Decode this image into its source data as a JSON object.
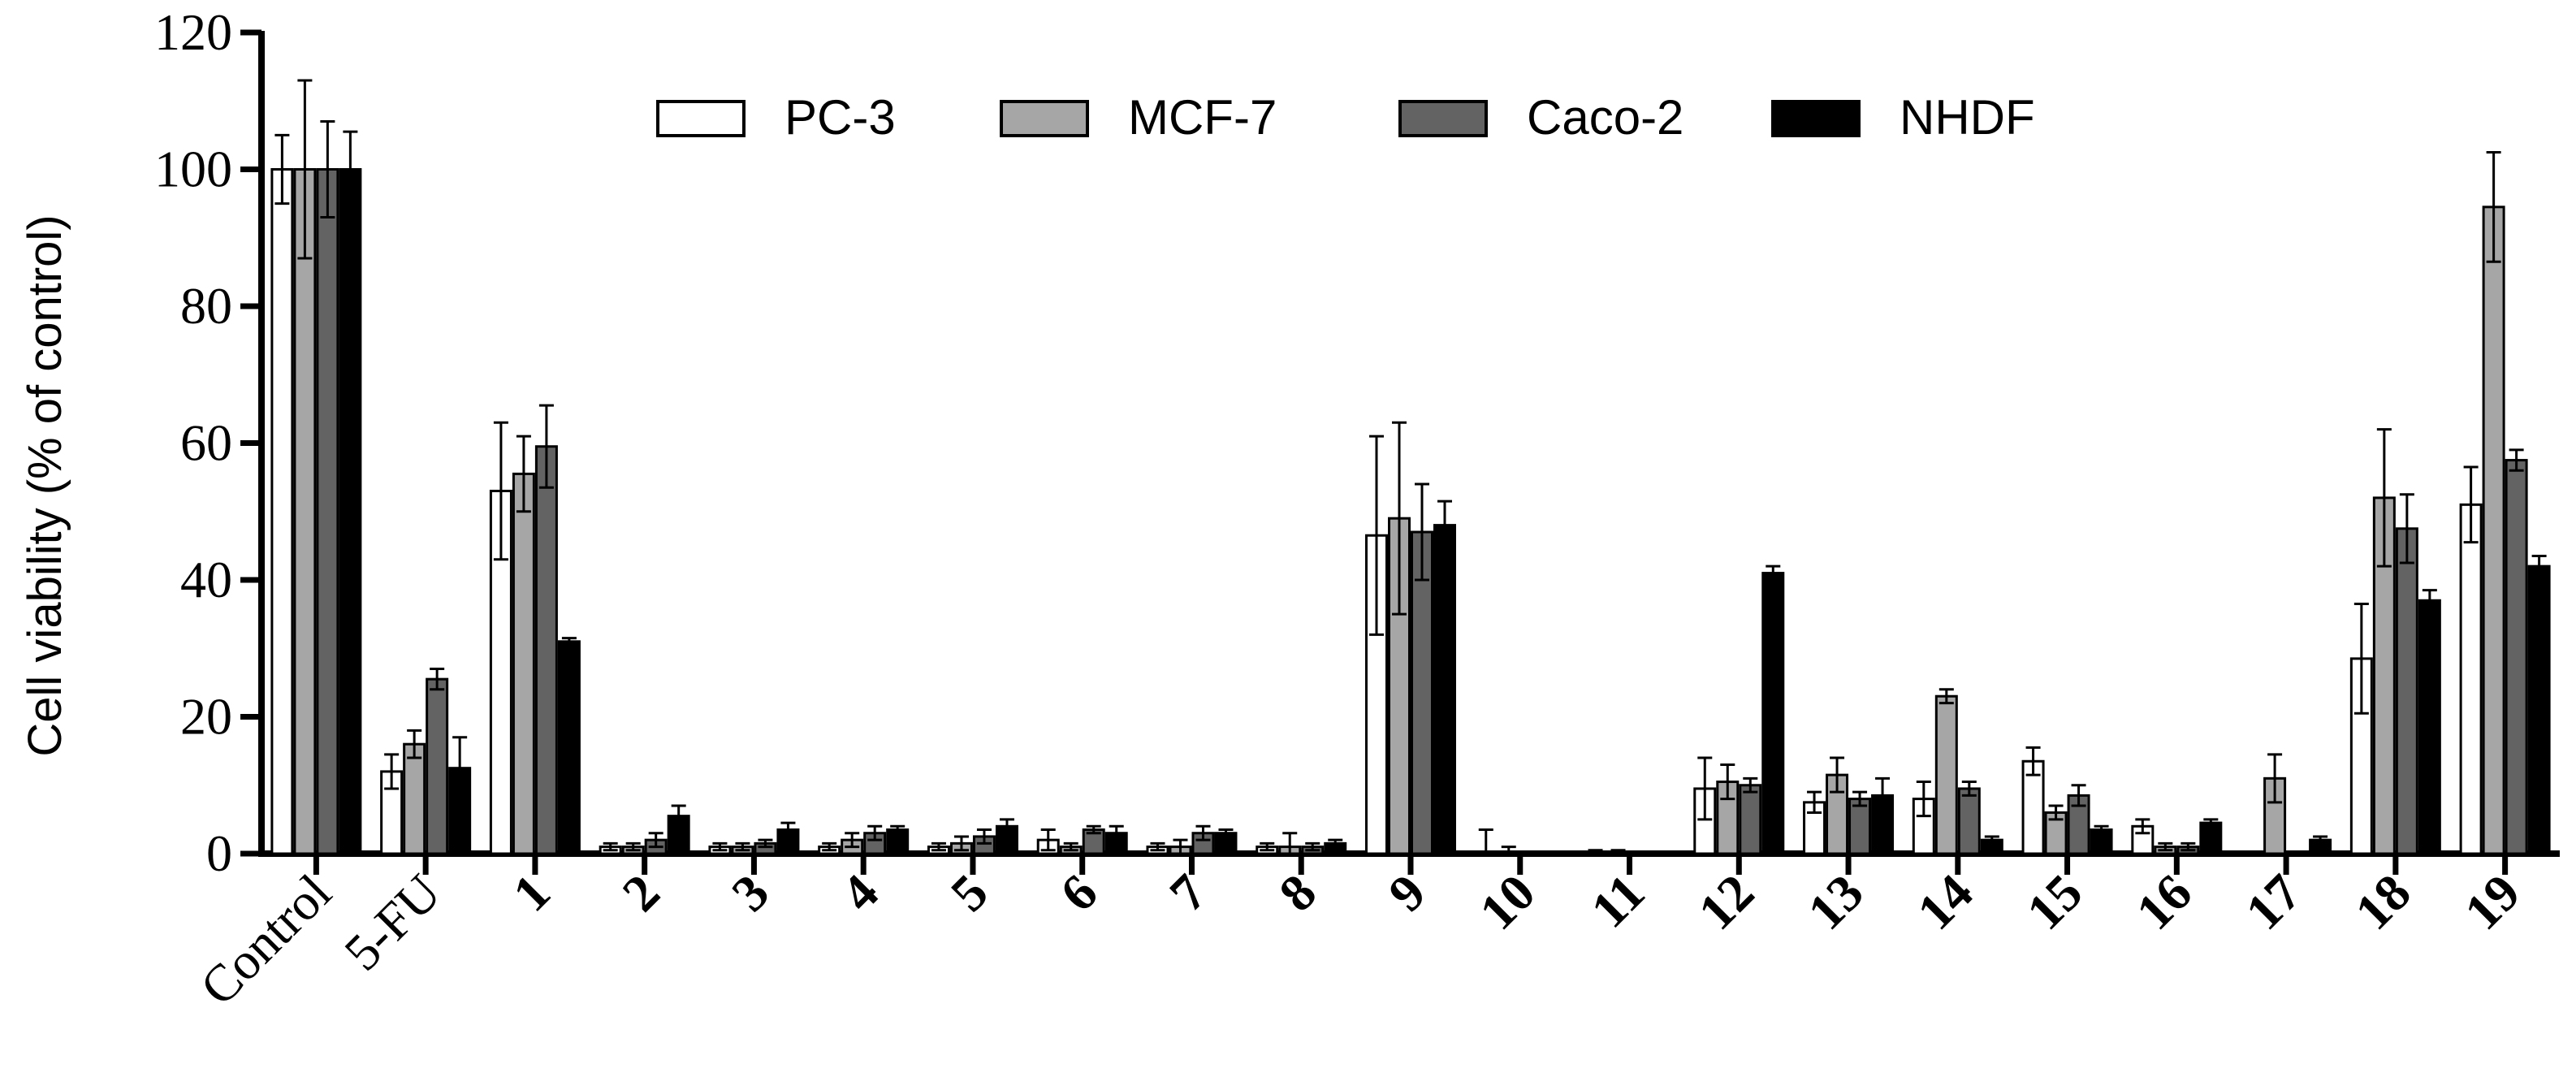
{
  "chart_data": {
    "type": "bar",
    "ylabel": "Cell viability (% of control)",
    "xlabel": "",
    "ylim": [
      0,
      120
    ],
    "yticks": [
      0,
      20,
      40,
      60,
      80,
      100,
      120
    ],
    "legend_position": "top-center",
    "categories": [
      "Control",
      "5-FU",
      "1",
      "2",
      "3",
      "4",
      "5",
      "6",
      "7",
      "8",
      "9",
      "10",
      "11",
      "12",
      "13",
      "14",
      "15",
      "16",
      "17",
      "18",
      "19"
    ],
    "bold_categories_from_index": 2,
    "series": [
      {
        "name": "PC-3",
        "color": "#ffffff",
        "values": [
          100,
          12,
          53,
          1,
          1,
          1,
          1,
          2,
          1,
          1,
          46.5,
          0,
          0,
          9.5,
          7.5,
          8,
          13.5,
          4,
          0,
          28.5,
          51
        ],
        "errors": [
          5,
          2.5,
          10,
          0.5,
          0.5,
          0.5,
          0.5,
          1.5,
          0.5,
          0.5,
          14.5,
          3.5,
          0.5,
          4.5,
          1.5,
          2.5,
          2,
          1,
          0,
          8,
          5.5
        ]
      },
      {
        "name": "MCF-7",
        "color": "#a6a6a6",
        "values": [
          100,
          16,
          55.5,
          1,
          1,
          2,
          1.5,
          1,
          1,
          1,
          49,
          0,
          0,
          10.5,
          11.5,
          23,
          6,
          1,
          11,
          52,
          94.5
        ],
        "errors": [
          13,
          2,
          5.5,
          0.5,
          0.5,
          1,
          1,
          0.5,
          1,
          2,
          14,
          1,
          0.5,
          2.5,
          2.5,
          1,
          1,
          0.5,
          3.5,
          10,
          8
        ]
      },
      {
        "name": "Caco-2",
        "color": "#636363",
        "values": [
          100,
          25.5,
          59.5,
          2,
          1.5,
          3,
          2.5,
          3.5,
          3,
          1,
          47,
          0,
          0,
          10,
          8,
          9.5,
          8.5,
          1,
          0,
          47.5,
          57.5
        ],
        "errors": [
          7,
          1.5,
          6,
          1,
          0.5,
          1,
          1,
          0.5,
          1,
          0.5,
          7,
          0,
          0,
          1,
          1,
          1,
          1.5,
          0.5,
          0,
          5,
          1.5
        ]
      },
      {
        "name": "NHDF",
        "color": "#000000",
        "values": [
          100,
          12.5,
          31,
          5.5,
          3.5,
          3.5,
          4,
          3,
          3,
          1.5,
          48,
          0,
          0,
          41,
          8.5,
          2,
          3.5,
          4.5,
          2,
          37,
          42
        ],
        "errors": [
          5.5,
          4.5,
          0.5,
          1.5,
          1,
          0.5,
          1,
          1,
          0.5,
          0.5,
          3.5,
          0,
          0,
          1,
          2.5,
          0.5,
          0.5,
          0.5,
          0.5,
          1.5,
          1.5
        ]
      }
    ]
  }
}
